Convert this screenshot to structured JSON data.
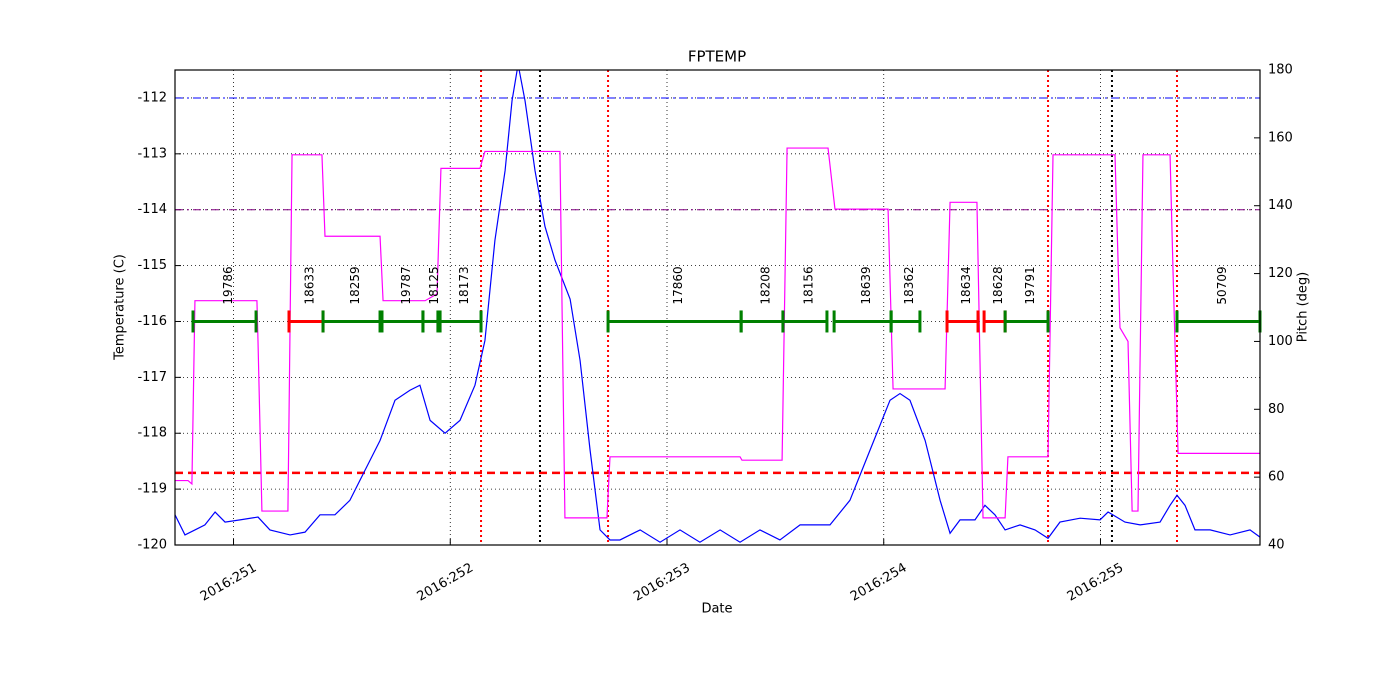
{
  "chart_data": {
    "type": "line",
    "title": "FPTEMP",
    "xlabel": "Date",
    "ylabel": "Temperature (C)",
    "y2label": "Pitch (deg)",
    "y2color": "#ff00ff",
    "grid": true,
    "xlim": [
      250.73,
      255.736
    ],
    "xticks": [
      {
        "value": 251,
        "label": "2016:251"
      },
      {
        "value": 252,
        "label": "2016:252"
      },
      {
        "value": 253,
        "label": "2016:253"
      },
      {
        "value": 254,
        "label": "2016:254"
      },
      {
        "value": 255,
        "label": "2016:255"
      }
    ],
    "ylim": [
      -120,
      -111.5
    ],
    "yticks": [
      -120,
      -119,
      -118,
      -117,
      -116,
      -115,
      -114,
      -113,
      -112
    ],
    "y2lim": [
      40,
      180
    ],
    "y2ticks": [
      40,
      60,
      80,
      100,
      120,
      140,
      160,
      180
    ],
    "series": [
      {
        "color": "#0000ff",
        "axis": "y",
        "x": [
          250.73,
          250.776,
          250.822,
          250.868,
          250.915,
          250.961,
          251.03,
          251.113,
          251.168,
          251.261,
          251.33,
          251.399,
          251.468,
          251.537,
          251.607,
          251.676,
          251.745,
          251.814,
          251.86,
          251.907,
          251.976,
          252.045,
          252.114,
          252.16,
          252.206,
          252.253,
          252.285,
          252.313,
          252.345,
          252.391,
          252.437,
          252.483,
          252.553,
          252.599,
          252.645,
          252.691,
          252.737,
          252.783,
          252.876,
          252.968,
          253.06,
          253.152,
          253.245,
          253.337,
          253.429,
          253.521,
          253.614,
          253.683,
          253.752,
          253.844,
          253.937,
          254.029,
          254.075,
          254.121,
          254.191,
          254.26,
          254.306,
          254.352,
          254.421,
          254.467,
          254.513,
          254.56,
          254.629,
          254.698,
          254.758,
          254.813,
          254.906,
          254.998,
          255.035,
          255.113,
          255.183,
          255.275,
          255.321,
          255.353,
          255.39,
          255.436,
          255.506,
          255.598,
          255.69,
          255.736
        ],
        "values": [
          -119.46,
          -119.82,
          -119.73,
          -119.64,
          -119.41,
          -119.59,
          -119.55,
          -119.5,
          -119.73,
          -119.82,
          -119.77,
          -119.46,
          -119.46,
          -119.2,
          -118.66,
          -118.13,
          -117.41,
          -117.23,
          -117.14,
          -117.77,
          -118.0,
          -117.77,
          -117.14,
          -116.34,
          -114.55,
          -113.3,
          -112.05,
          -111.4,
          -112.05,
          -113.3,
          -114.3,
          -114.9,
          -115.6,
          -116.7,
          -118.3,
          -119.73,
          -119.91,
          -119.91,
          -119.73,
          -119.95,
          -119.73,
          -119.95,
          -119.73,
          -119.95,
          -119.73,
          -119.91,
          -119.64,
          -119.64,
          -119.64,
          -119.2,
          -118.3,
          -117.41,
          -117.29,
          -117.41,
          -118.13,
          -119.2,
          -119.79,
          -119.55,
          -119.55,
          -119.29,
          -119.46,
          -119.73,
          -119.64,
          -119.73,
          -119.88,
          -119.59,
          -119.52,
          -119.55,
          -119.41,
          -119.59,
          -119.64,
          -119.59,
          -119.29,
          -119.11,
          -119.29,
          -119.73,
          -119.73,
          -119.82,
          -119.73,
          -119.86
        ]
      },
      {
        "color": "#ff00ff",
        "axis": "y2",
        "x": [
          250.73,
          250.79,
          250.808,
          250.822,
          251.108,
          251.113,
          251.131,
          251.251,
          251.27,
          251.408,
          251.422,
          251.676,
          251.69,
          251.884,
          251.939,
          251.957,
          252.137,
          252.16,
          252.506,
          252.529,
          252.723,
          252.737,
          253.337,
          253.346,
          253.531,
          253.554,
          253.743,
          253.775,
          254.02,
          254.043,
          254.283,
          254.306,
          254.43,
          254.458,
          254.56,
          254.573,
          254.758,
          254.781,
          255.067,
          255.09,
          255.127,
          255.146,
          255.173,
          255.196,
          255.321,
          255.335,
          255.358,
          255.736
        ],
        "values": [
          59,
          59,
          58,
          112,
          112,
          100,
          50,
          50,
          155,
          155,
          131,
          131,
          112,
          112,
          114,
          151,
          151,
          156,
          156,
          48,
          48,
          66,
          66,
          65,
          65,
          157,
          157,
          139,
          139,
          86,
          86,
          141,
          141,
          48,
          48,
          66,
          66,
          155,
          155,
          104,
          100,
          50,
          50,
          155,
          155,
          120,
          67,
          67
        ]
      }
    ],
    "hlines": [
      {
        "value": -112,
        "color": "#0000ff",
        "style": "dashdot"
      },
      {
        "value": -114,
        "color": "#800080",
        "style": "dashdot"
      },
      {
        "value": -118.71,
        "color": "#ff0000",
        "style": "dashed"
      }
    ],
    "vlines": [
      {
        "value": 252.142,
        "color": "#ff0000"
      },
      {
        "value": 252.728,
        "color": "#ff0000"
      },
      {
        "value": 254.758,
        "color": "#ff0000"
      },
      {
        "value": 255.353,
        "color": "#ff0000"
      },
      {
        "value": 252.414,
        "color": "#000000"
      },
      {
        "value": 255.053,
        "color": "#000000"
      }
    ],
    "obsids": {
      "level": -116,
      "segments": [
        {
          "label": "19786",
          "start": 250.813,
          "end": 251.104,
          "color": "#008000"
        },
        {
          "label": "18633",
          "start": 251.256,
          "end": 251.413,
          "color": "#ff0000"
        },
        {
          "label": "18259",
          "start": 251.413,
          "end": 251.676,
          "color": "#008000"
        },
        {
          "label": "19787",
          "start": 251.685,
          "end": 251.874,
          "color": "#008000"
        },
        {
          "label": "18125",
          "start": 251.874,
          "end": 251.943,
          "color": "#008000"
        },
        {
          "label": "18173",
          "start": 251.953,
          "end": 252.142,
          "color": "#008000"
        },
        {
          "label": "17860",
          "start": 252.728,
          "end": 253.342,
          "color": "#008000"
        },
        {
          "label": "18208",
          "start": 253.342,
          "end": 253.535,
          "color": "#008000"
        },
        {
          "label": "18156",
          "start": 253.535,
          "end": 253.738,
          "color": "#008000"
        },
        {
          "label": "18639",
          "start": 253.771,
          "end": 254.034,
          "color": "#008000"
        },
        {
          "label": "18362",
          "start": 254.034,
          "end": 254.167,
          "color": "#008000"
        },
        {
          "label": "18634",
          "start": 254.292,
          "end": 254.435,
          "color": "#ff0000"
        },
        {
          "label": "18628",
          "start": 254.463,
          "end": 254.56,
          "color": "#ff0000"
        },
        {
          "label": "19791",
          "start": 254.56,
          "end": 254.758,
          "color": "#008000"
        },
        {
          "label": "50709",
          "start": 255.353,
          "end": 255.736,
          "color": "#008000"
        }
      ]
    }
  }
}
